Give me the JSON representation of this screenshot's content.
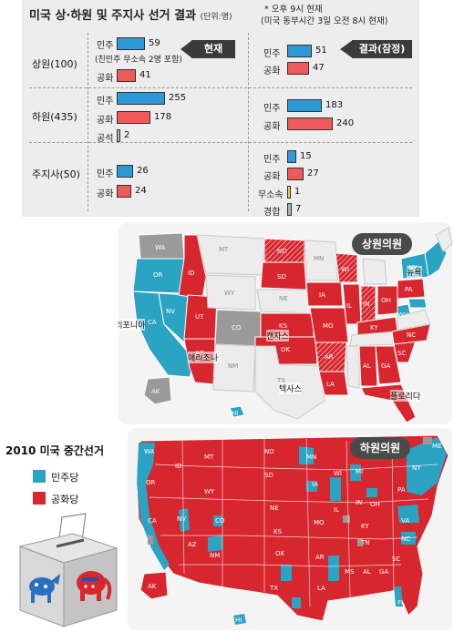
{
  "header": {
    "title": "미국 상·하원 및 주지사 선거 결과",
    "unit": "(단위:명)",
    "note_line1": "* 오후 9시 현재",
    "note_line2": "(미국 동부시간 3일 오전 8시 현재)"
  },
  "tags": {
    "current": "현재",
    "result": "결과(잠정)"
  },
  "rows": {
    "senate": {
      "label": "상원(100)",
      "current": {
        "dem_label": "민주",
        "dem": "59",
        "dem_note": "(친민주 무소속 2명 포함)",
        "rep_label": "공화",
        "rep": "41"
      },
      "result": {
        "dem_label": "민주",
        "dem": "51",
        "rep_label": "공화",
        "rep": "47"
      }
    },
    "house": {
      "label": "하원(435)",
      "current": {
        "dem_label": "민주",
        "dem": "255",
        "rep_label": "공화",
        "rep": "178",
        "vac_label": "공석",
        "vac": "2"
      },
      "result": {
        "dem_label": "민주",
        "dem": "183",
        "rep_label": "공화",
        "rep": "240"
      }
    },
    "governor": {
      "label": "주지사(50)",
      "current": {
        "dem_label": "민주",
        "dem": "26",
        "rep_label": "공화",
        "rep": "24"
      },
      "result": {
        "dem_label": "민주",
        "dem": "15",
        "rep_label": "공화",
        "rep": "27",
        "ind_label": "무소속",
        "ind": "1",
        "close_label": "경합",
        "close": "7"
      }
    }
  },
  "values": {
    "senate_current_dem": 59,
    "senate_current_rep": 41,
    "senate_result_dem": 51,
    "senate_result_rep": 47,
    "house_current_dem": 255,
    "house_current_rep": 178,
    "house_current_vac": 2,
    "house_result_dem": 183,
    "house_result_rep": 240,
    "gov_current_dem": 26,
    "gov_current_rep": 24,
    "gov_result_dem": 15,
    "gov_result_rep": 27,
    "gov_result_ind": 1,
    "gov_result_close": 7
  },
  "senate_map": {
    "badge": "상원의원",
    "cities": {
      "california": "캘리포니아",
      "arizona": "애리조나",
      "kansas": "캔자스",
      "texas": "텍사스",
      "florida": "플로리다",
      "newyork": "뉴욕"
    }
  },
  "house_map": {
    "badge": "하원의원"
  },
  "side": {
    "title": "2010 미국 중간선거",
    "legend_dem": "민주당",
    "legend_rep": "공화당"
  },
  "colors": {
    "democrat": "#2ba3c3",
    "republican": "#d7262e",
    "undecided": "#9a9a9a",
    "no_race": "#ffffff",
    "bar_dem": "#2b9ad6",
    "bar_rep": "#ee5a5a"
  }
}
